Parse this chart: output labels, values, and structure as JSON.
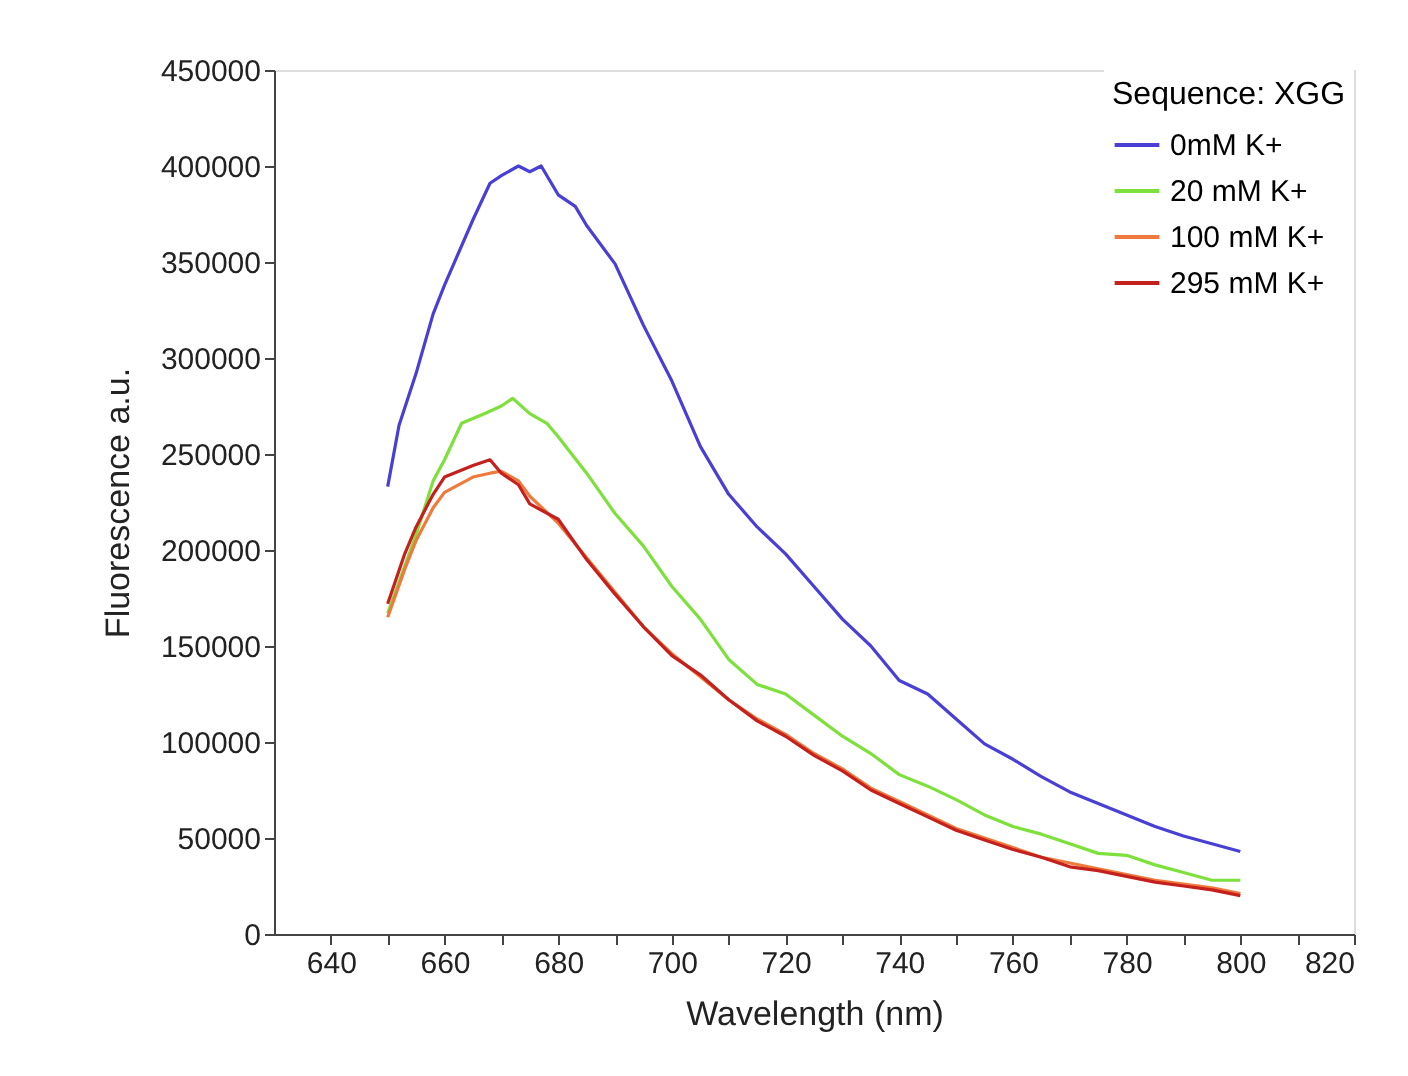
{
  "chart_data": {
    "type": "line",
    "xlabel": "Wavelength (nm)",
    "ylabel": "Fluorescence a.u.",
    "legend_title": "Sequence: XGG",
    "legend": "top right",
    "grid": false,
    "marker": "none",
    "line_style": "solid",
    "xlim": [
      630,
      820
    ],
    "xticks": [
      640,
      {
        "value": 650,
        "label": null
      },
      660,
      {
        "value": 670,
        "label": null
      },
      680,
      {
        "value": 690,
        "label": null
      },
      700,
      {
        "value": 710,
        "label": null
      },
      720,
      {
        "value": 730,
        "label": null
      },
      740,
      {
        "value": 750,
        "label": null
      },
      760,
      {
        "value": 770,
        "label": null
      },
      780,
      {
        "value": 790,
        "label": null
      },
      800,
      {
        "value": 810,
        "label": null
      },
      820
    ],
    "ylim": [
      0,
      450000
    ],
    "yticks": [
      0,
      50000,
      100000,
      150000,
      200000,
      250000,
      300000,
      350000,
      400000,
      450000
    ],
    "series": [
      {
        "name": "0mM K+",
        "color": "#4a3fd4",
        "x": [
          650,
          652,
          655,
          658,
          660,
          665,
          668,
          670,
          673,
          675,
          677,
          680,
          683,
          685,
          690,
          695,
          700,
          705,
          710,
          715,
          720,
          725,
          730,
          735,
          740,
          745,
          750,
          755,
          760,
          765,
          770,
          775,
          780,
          785,
          790,
          795,
          800
        ],
        "values": [
          233000,
          265000,
          292000,
          323000,
          338000,
          372000,
          391000,
          395000,
          400000,
          397000,
          400000,
          385000,
          379000,
          369000,
          349000,
          317000,
          288000,
          254000,
          229000,
          212000,
          198000,
          181000,
          164000,
          150000,
          132000,
          125000,
          112000,
          99000,
          91000,
          82000,
          74000,
          68000,
          62000,
          56000,
          51000,
          47000,
          43000
        ]
      },
      {
        "name": "20 mM K+",
        "color": "#7ee03c",
        "x": [
          650,
          655,
          658,
          660,
          663,
          667,
          670,
          672,
          675,
          678,
          680,
          685,
          690,
          695,
          700,
          705,
          710,
          715,
          720,
          725,
          730,
          735,
          740,
          745,
          750,
          755,
          760,
          765,
          770,
          775,
          780,
          785,
          790,
          795,
          800
        ],
        "values": [
          167000,
          208000,
          236000,
          247000,
          266000,
          271000,
          275000,
          279000,
          271000,
          266000,
          259000,
          240000,
          219000,
          202000,
          181000,
          164000,
          143000,
          130000,
          125000,
          114000,
          103000,
          94000,
          83000,
          77000,
          70000,
          62000,
          56000,
          52000,
          47000,
          42000,
          41000,
          36000,
          32000,
          28000,
          28000
        ]
      },
      {
        "name": "100 mM K+",
        "color": "#f07a3c",
        "x": [
          650,
          653,
          655,
          658,
          660,
          665,
          668,
          670,
          673,
          675,
          680,
          685,
          690,
          695,
          700,
          705,
          710,
          715,
          720,
          725,
          730,
          735,
          740,
          745,
          750,
          755,
          760,
          765,
          770,
          775,
          780,
          785,
          790,
          795,
          800
        ],
        "values": [
          165000,
          190000,
          205000,
          222000,
          230000,
          238000,
          240000,
          241000,
          236000,
          228000,
          214000,
          196000,
          178000,
          160000,
          146000,
          134000,
          122000,
          112000,
          104000,
          94000,
          86000,
          76000,
          69000,
          62000,
          55000,
          50000,
          45000,
          40000,
          37000,
          34000,
          31000,
          28000,
          26000,
          24000,
          21000
        ]
      },
      {
        "name": "295 mM K+",
        "color": "#c4201e",
        "x": [
          650,
          653,
          655,
          658,
          660,
          665,
          668,
          670,
          673,
          675,
          680,
          685,
          690,
          695,
          700,
          705,
          710,
          715,
          720,
          725,
          730,
          735,
          740,
          745,
          750,
          755,
          760,
          765,
          770,
          775,
          780,
          785,
          790,
          795,
          800
        ],
        "values": [
          172000,
          198000,
          212000,
          229000,
          238000,
          244000,
          247000,
          240000,
          234000,
          224000,
          216000,
          195000,
          177000,
          160000,
          145000,
          135000,
          122000,
          111000,
          103000,
          93000,
          85000,
          75000,
          68000,
          61000,
          54000,
          49000,
          44000,
          40000,
          35000,
          33000,
          30000,
          27000,
          25000,
          23000,
          20000
        ]
      }
    ]
  }
}
